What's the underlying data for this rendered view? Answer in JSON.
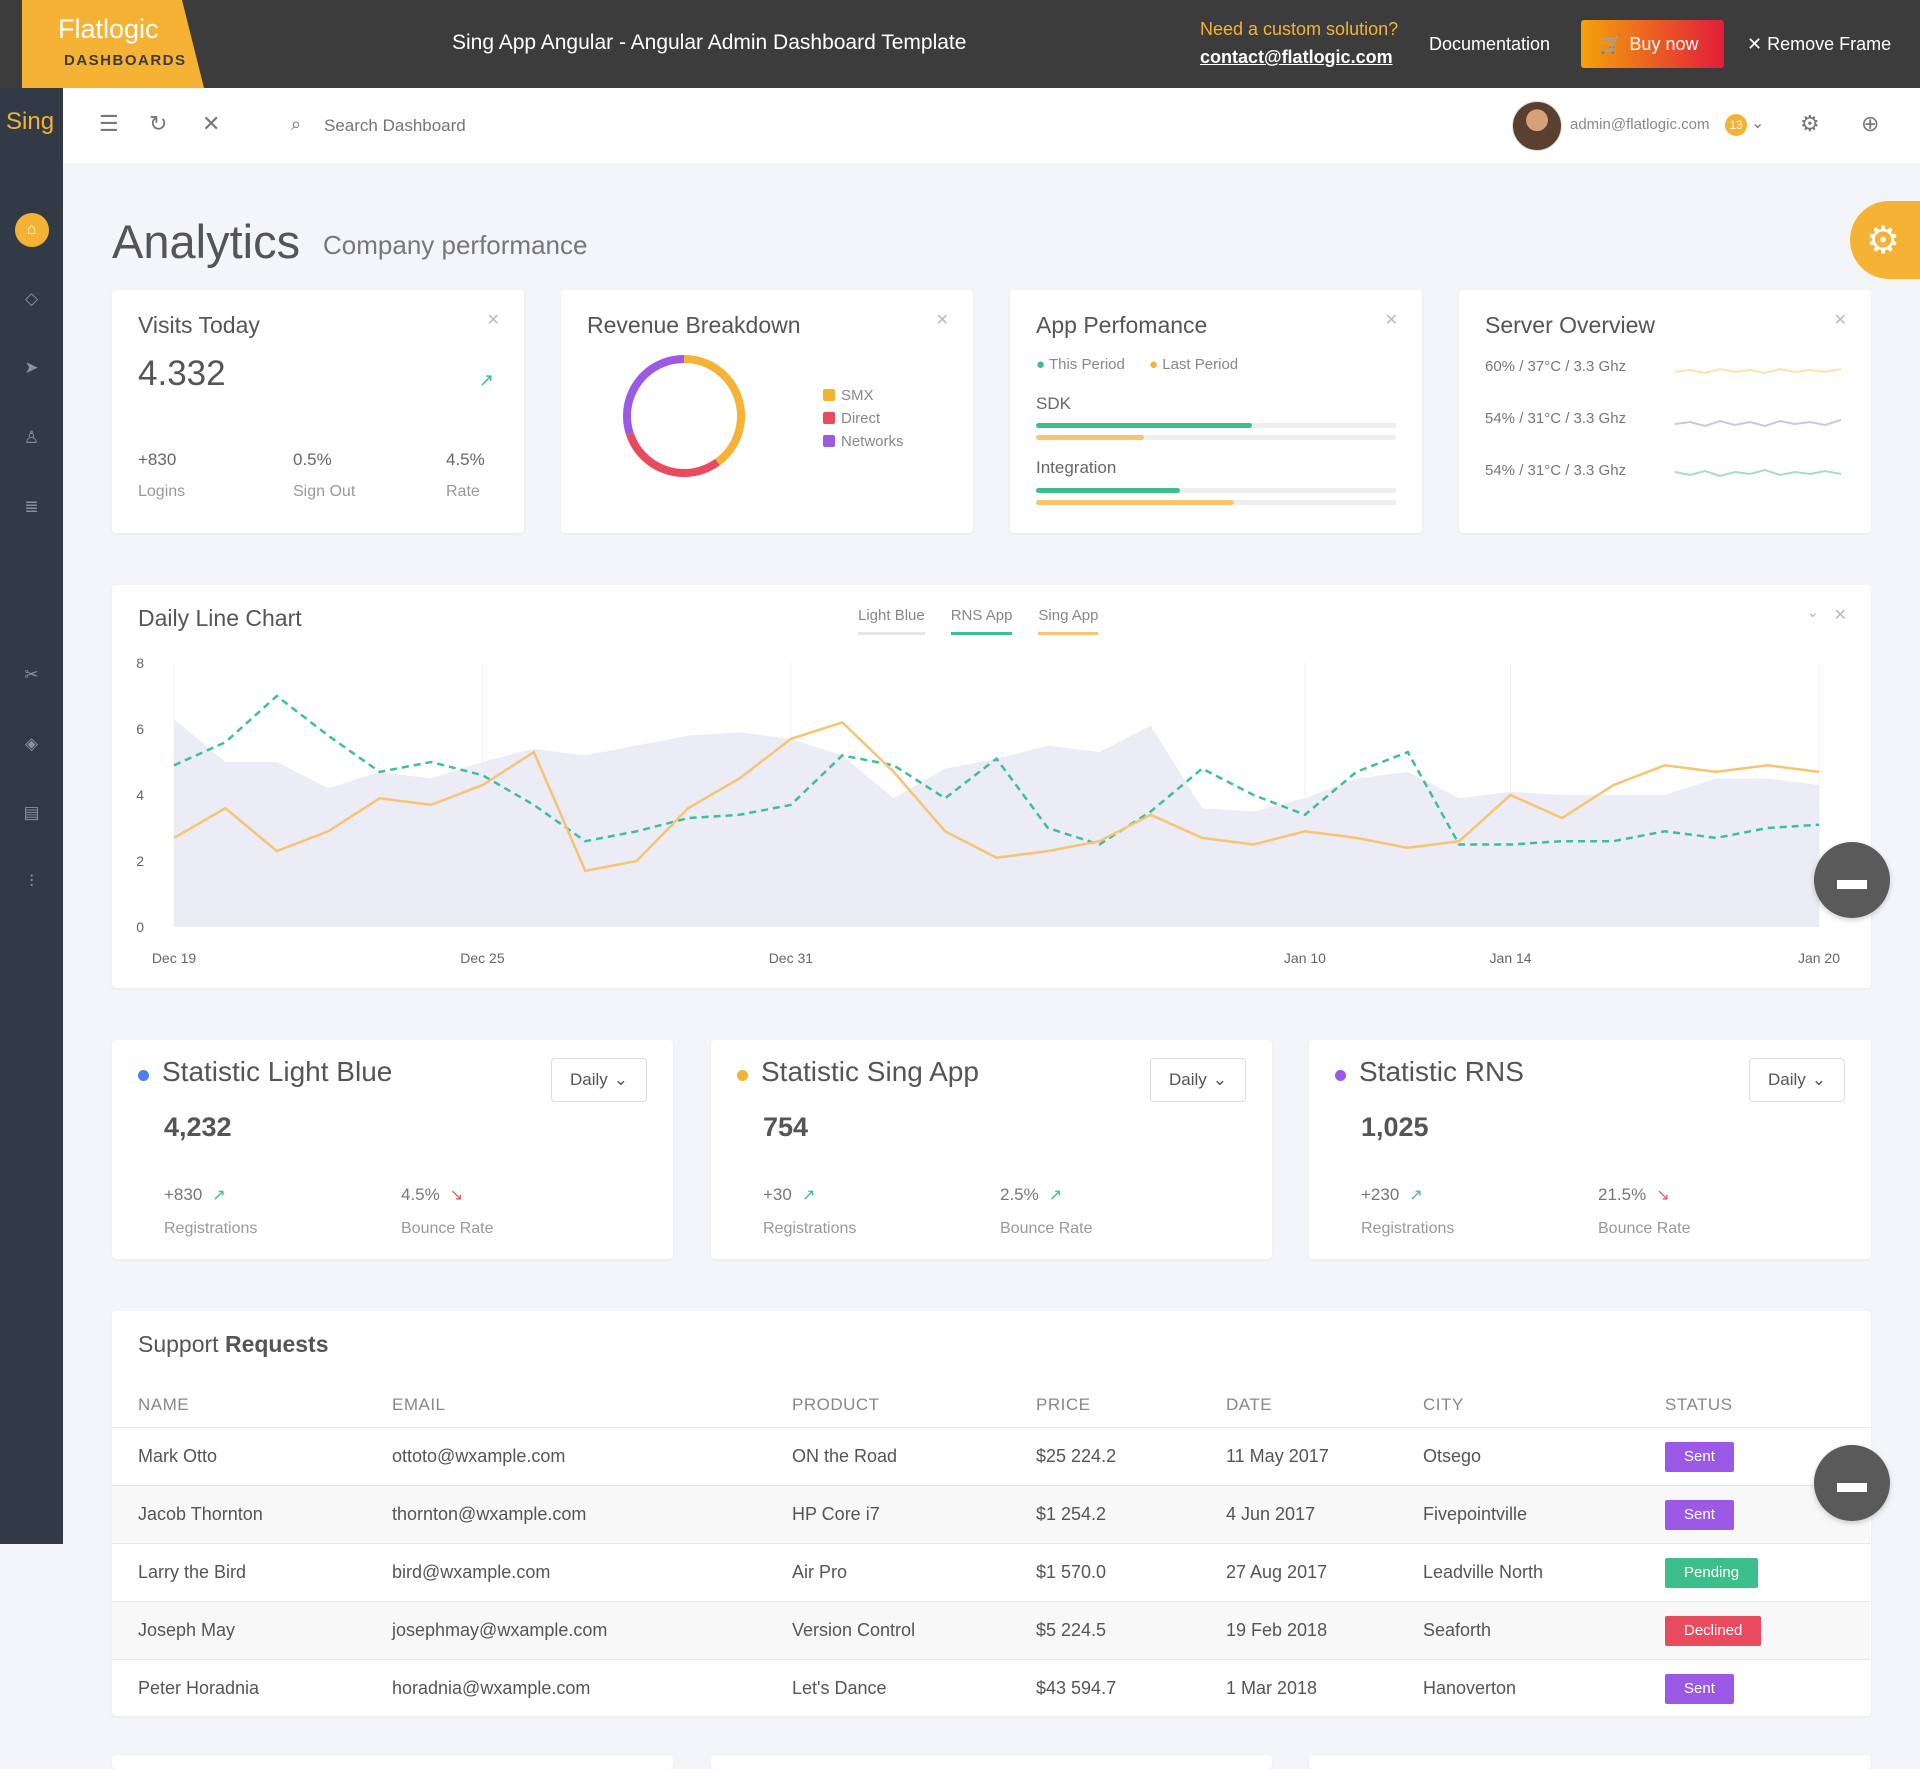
{
  "promo": {
    "logo_top": "Flatlogic",
    "logo_bottom": "DASHBOARDS",
    "title": "Sing App Angular - Angular Admin Dashboard Template",
    "need": "Need a custom solution?",
    "email": "contact@flatlogic.com",
    "documentation": "Documentation",
    "buy": "Buy now",
    "remove": "Remove Frame"
  },
  "sidebar": {
    "logo": "Sing",
    "items": [
      "home-icon",
      "diamond-icon",
      "send-icon",
      "user-icon",
      "database-icon",
      "tools-icon",
      "layers-icon",
      "document-icon",
      "sliders-icon"
    ]
  },
  "header": {
    "search_placeholder": "Search Dashboard",
    "user_email": "admin@flatlogic.com",
    "badge": "13"
  },
  "page": {
    "title": "Analytics",
    "subtitle": "Company performance"
  },
  "visits": {
    "title": "Visits Today",
    "value": "4.332",
    "stats": [
      {
        "value": "+830",
        "label": "Logins"
      },
      {
        "value": "0.5%",
        "label": "Sign Out"
      },
      {
        "value": "4.5%",
        "label": "Rate"
      }
    ]
  },
  "revenue": {
    "title": "Revenue Breakdown",
    "legend": [
      {
        "label": "SMX",
        "color": "#f5b234"
      },
      {
        "label": "Direct",
        "color": "#e84a5f"
      },
      {
        "label": "Networks",
        "color": "#9b59e6"
      }
    ],
    "segments": [
      {
        "label": "SMX",
        "fraction": 0.4,
        "color": "#f5b234"
      },
      {
        "label": "Direct",
        "fraction": 0.3,
        "color": "#e84a5f"
      },
      {
        "label": "Networks",
        "fraction": 0.3,
        "color": "#9b59e6"
      }
    ]
  },
  "app_perf": {
    "title": "App Perfomance",
    "this_period": "This Period",
    "last_period": "Last Period",
    "rows": [
      {
        "label": "SDK",
        "this": 0.6,
        "last": 0.3
      },
      {
        "label": "Integration",
        "this": 0.4,
        "last": 0.55
      }
    ]
  },
  "server": {
    "title": "Server Overview",
    "rows": [
      {
        "label": "60% / 37°C / 3.3 Ghz",
        "color": "#fbe3b0"
      },
      {
        "label": "54% / 31°C / 3.3 Ghz",
        "color": "#c9c7e6"
      },
      {
        "label": "54% / 31°C / 3.3 Ghz",
        "color": "#a8dcc8"
      }
    ]
  },
  "chart_data": {
    "type": "line",
    "title": "Daily Line Chart",
    "x": [
      "Dec 19",
      "Dec 20",
      "Dec 21",
      "Dec 22",
      "Dec 23",
      "Dec 24",
      "Dec 25",
      "Dec 26",
      "Dec 27",
      "Dec 28",
      "Dec 29",
      "Dec 30",
      "Dec 31",
      "Jan 1",
      "Jan 2",
      "Jan 3",
      "Jan 4",
      "Jan 5",
      "Jan 6",
      "Jan 7",
      "Jan 8",
      "Jan 9",
      "Jan 10",
      "Jan 11",
      "Jan 12",
      "Jan 13",
      "Jan 14",
      "Jan 15",
      "Jan 16",
      "Jan 17",
      "Jan 18",
      "Jan 19",
      "Jan 20"
    ],
    "xticks": [
      "Dec 19",
      "Dec 25",
      "Dec 31",
      "Jan 10",
      "Jan 14",
      "Jan 20"
    ],
    "ylim": [
      0,
      8
    ],
    "yticks": [
      0,
      2,
      4,
      6,
      8
    ],
    "legend_position": "top-center",
    "series": [
      {
        "name": "Light Blue",
        "style": "area",
        "color": "#ececf7",
        "values": [
          6.3,
          5,
          5,
          4.2,
          4.7,
          4.5,
          5,
          5.4,
          5.2,
          5.5,
          5.8,
          5.9,
          5.7,
          5.2,
          3.9,
          4.8,
          5.1,
          5.5,
          5.3,
          6.1,
          3.6,
          3.5,
          3.9,
          4.5,
          4.7,
          3.9,
          4.1,
          4.0,
          4.0,
          4.0,
          4.5,
          4.5,
          4.3
        ]
      },
      {
        "name": "RNS App",
        "style": "dashed",
        "color": "#3cbf9b",
        "values": [
          4.9,
          5.6,
          7.0,
          5.8,
          4.7,
          5.0,
          4.6,
          3.7,
          2.6,
          2.9,
          3.3,
          3.4,
          3.7,
          5.2,
          4.9,
          3.9,
          5.1,
          3.0,
          2.5,
          3.5,
          4.8,
          4.0,
          3.4,
          4.7,
          5.3,
          2.5,
          2.5,
          2.6,
          2.6,
          2.9,
          2.7,
          3.0,
          3.1
        ]
      },
      {
        "name": "Sing App",
        "style": "solid",
        "color": "#f8c471",
        "values": [
          2.7,
          3.6,
          2.3,
          2.9,
          3.9,
          3.7,
          4.3,
          5.3,
          1.7,
          2.0,
          3.6,
          4.5,
          5.7,
          6.2,
          4.7,
          2.9,
          2.1,
          2.3,
          2.6,
          3.4,
          2.7,
          2.5,
          2.9,
          2.7,
          2.4,
          2.6,
          4.0,
          3.3,
          4.3,
          4.9,
          4.7,
          4.9,
          4.7
        ]
      }
    ]
  },
  "stats": [
    {
      "title": "Statistic Light Blue",
      "dot": "#4f7ff0",
      "period": "Daily",
      "value": "4,232",
      "a_value": "+830",
      "a_label": "Registrations",
      "a_dir": "up",
      "b_value": "4.5%",
      "b_label": "Bounce Rate",
      "b_dir": "down"
    },
    {
      "title": "Statistic Sing App",
      "dot": "#f5b234",
      "period": "Daily",
      "value": "754",
      "a_value": "+30",
      "a_label": "Registrations",
      "a_dir": "up",
      "b_value": "2.5%",
      "b_label": "Bounce Rate",
      "b_dir": "up"
    },
    {
      "title": "Statistic RNS",
      "dot": "#9b59e6",
      "period": "Daily",
      "value": "1,025",
      "a_value": "+230",
      "a_label": "Registrations",
      "a_dir": "up",
      "b_value": "21.5%",
      "b_label": "Bounce Rate",
      "b_dir": "down"
    }
  ],
  "support": {
    "title_a": "Support",
    "title_b": "Requests",
    "columns": [
      "NAME",
      "EMAIL",
      "PRODUCT",
      "PRICE",
      "DATE",
      "CITY",
      "STATUS"
    ],
    "rows": [
      {
        "name": "Mark Otto",
        "email": "ottoto@wxample.com",
        "product": "ON the Road",
        "price": "$25 224.2",
        "date": "11 May 2017",
        "city": "Otsego",
        "status": "Sent",
        "status_color": "#9b59e6"
      },
      {
        "name": "Jacob Thornton",
        "email": "thornton@wxample.com",
        "product": "HP Core i7",
        "price": "$1 254.2",
        "date": "4 Jun 2017",
        "city": "Fivepointville",
        "status": "Sent",
        "status_color": "#9b59e6"
      },
      {
        "name": "Larry the Bird",
        "email": "bird@wxample.com",
        "product": "Air Pro",
        "price": "$1 570.0",
        "date": "27 Aug 2017",
        "city": "Leadville North",
        "status": "Pending",
        "status_color": "#3cbf8b"
      },
      {
        "name": "Joseph May",
        "email": "josephmay@wxample.com",
        "product": "Version Control",
        "price": "$5 224.5",
        "date": "19 Feb 2018",
        "city": "Seaforth",
        "status": "Declined",
        "status_color": "#e84a5f"
      },
      {
        "name": "Peter Horadnia",
        "email": "horadnia@wxample.com",
        "product": "Let's Dance",
        "price": "$43 594.7",
        "date": "1 Mar 2018",
        "city": "Hanoverton",
        "status": "Sent",
        "status_color": "#9b59e6"
      }
    ]
  }
}
